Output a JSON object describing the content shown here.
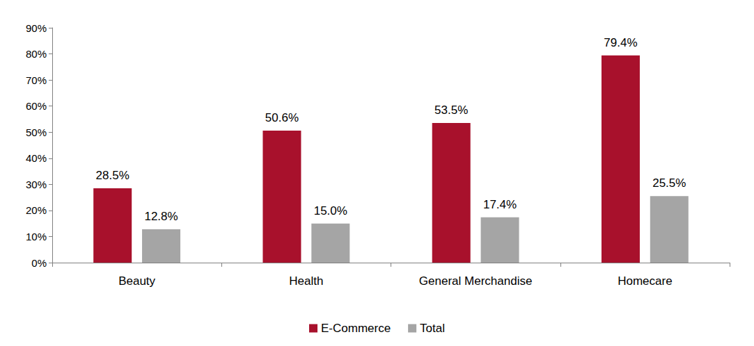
{
  "chart_data": {
    "type": "bar",
    "categories": [
      "Beauty",
      "Health",
      "General Merchandise",
      "Homecare"
    ],
    "series": [
      {
        "name": "E-Commerce",
        "color": "#A8112C",
        "values": [
          28.5,
          50.6,
          53.5,
          79.4
        ],
        "value_labels": [
          "28.5%",
          "50.6%",
          "53.5%",
          "79.4%"
        ]
      },
      {
        "name": "Total",
        "color": "#A5A5A5",
        "values": [
          12.8,
          15.0,
          17.4,
          25.5
        ],
        "value_labels": [
          "12.8%",
          "15.0%",
          "17.4%",
          "25.5%"
        ]
      }
    ],
    "ylim": [
      0,
      90
    ],
    "yticks": [
      {
        "value": 0,
        "label": "0%"
      },
      {
        "value": 10,
        "label": "10%"
      },
      {
        "value": 20,
        "label": "20%"
      },
      {
        "value": 30,
        "label": "30%"
      },
      {
        "value": 40,
        "label": "40%"
      },
      {
        "value": 50,
        "label": "50%"
      },
      {
        "value": 60,
        "label": "60%"
      },
      {
        "value": 70,
        "label": "70%"
      },
      {
        "value": 80,
        "label": "80%"
      },
      {
        "value": 90,
        "label": "90%"
      }
    ],
    "grid": false,
    "legend": "bottom",
    "data_labels": true
  }
}
